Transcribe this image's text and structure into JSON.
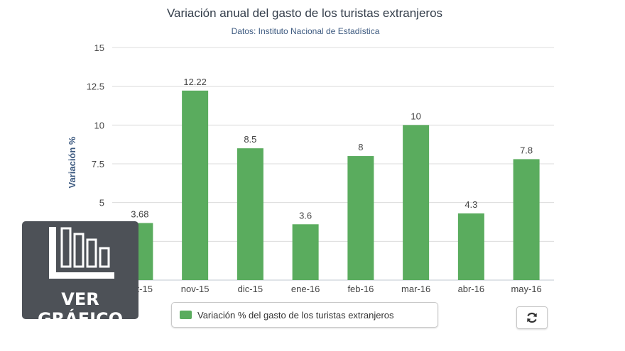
{
  "chart_data": {
    "type": "bar",
    "title": "Variación anual del gasto de los turistas extranjeros",
    "subtitle": "Datos: Instituto Nacional de Estadística",
    "ylabel": "Variación %",
    "xlabel": "",
    "ylim": [
      0,
      15
    ],
    "yticks": [
      "15",
      "12.5",
      "10",
      "7.5",
      "5",
      "2.5"
    ],
    "categories": [
      "oct-15",
      "nov-15",
      "dic-15",
      "ene-16",
      "feb-16",
      "mar-16",
      "abr-16",
      "may-16"
    ],
    "values": [
      3.68,
      12.22,
      8.5,
      3.6,
      8,
      10,
      4.3,
      7.8
    ],
    "value_labels": [
      "3.68",
      "12.22",
      "8.5",
      "3.6",
      "8",
      "10",
      "4.3",
      "7.8"
    ],
    "series_name": "Variación % del gasto de los turistas extranjeros",
    "grid": true,
    "legend": "bottom",
    "bar_color": "#5aac5e"
  },
  "controls": {
    "refresh_icon": "refresh-icon"
  },
  "badge": {
    "label": "VER GRÁFICO",
    "icon": "bar-chart-icon"
  }
}
